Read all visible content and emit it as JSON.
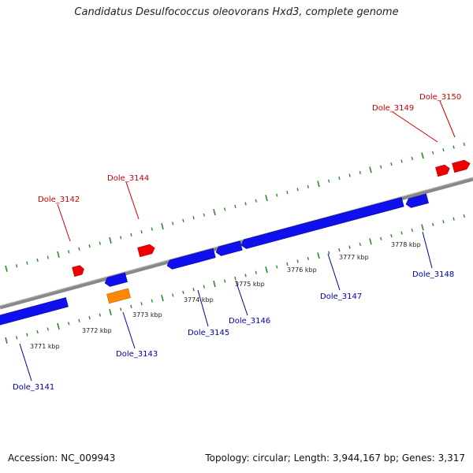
{
  "title": "Candidatus Desulfococcus oleovorans Hxd3, complete genome",
  "footer": {
    "accession": "Accession: NC_009943",
    "summary": "Topology: circular; Length: 3,944,167 bp; Genes: 3,317"
  },
  "colors": {
    "forward_gene": "#ee0000",
    "reverse_gene": "#1010ee",
    "rna_gene": "#ff8800",
    "backbone": "#888888",
    "ticks": "#2a8a2a",
    "top_label": "#cc0000",
    "bottom_label": "#0000aa"
  },
  "kbp_labels": [
    "3771 kbp",
    "3772 kbp",
    "3773 kbp",
    "3774 kbp",
    "3775 kbp",
    "3776 kbp",
    "3777 kbp",
    "3778 kbp"
  ],
  "top_genes": [
    "Dole_3142",
    "Dole_3144",
    "Dole_3149",
    "Dole_3150"
  ],
  "bottom_genes": [
    "Dole_3141",
    "Dole_3143",
    "Dole_3145",
    "Dole_3146",
    "Dole_3147",
    "Dole_3148"
  ]
}
